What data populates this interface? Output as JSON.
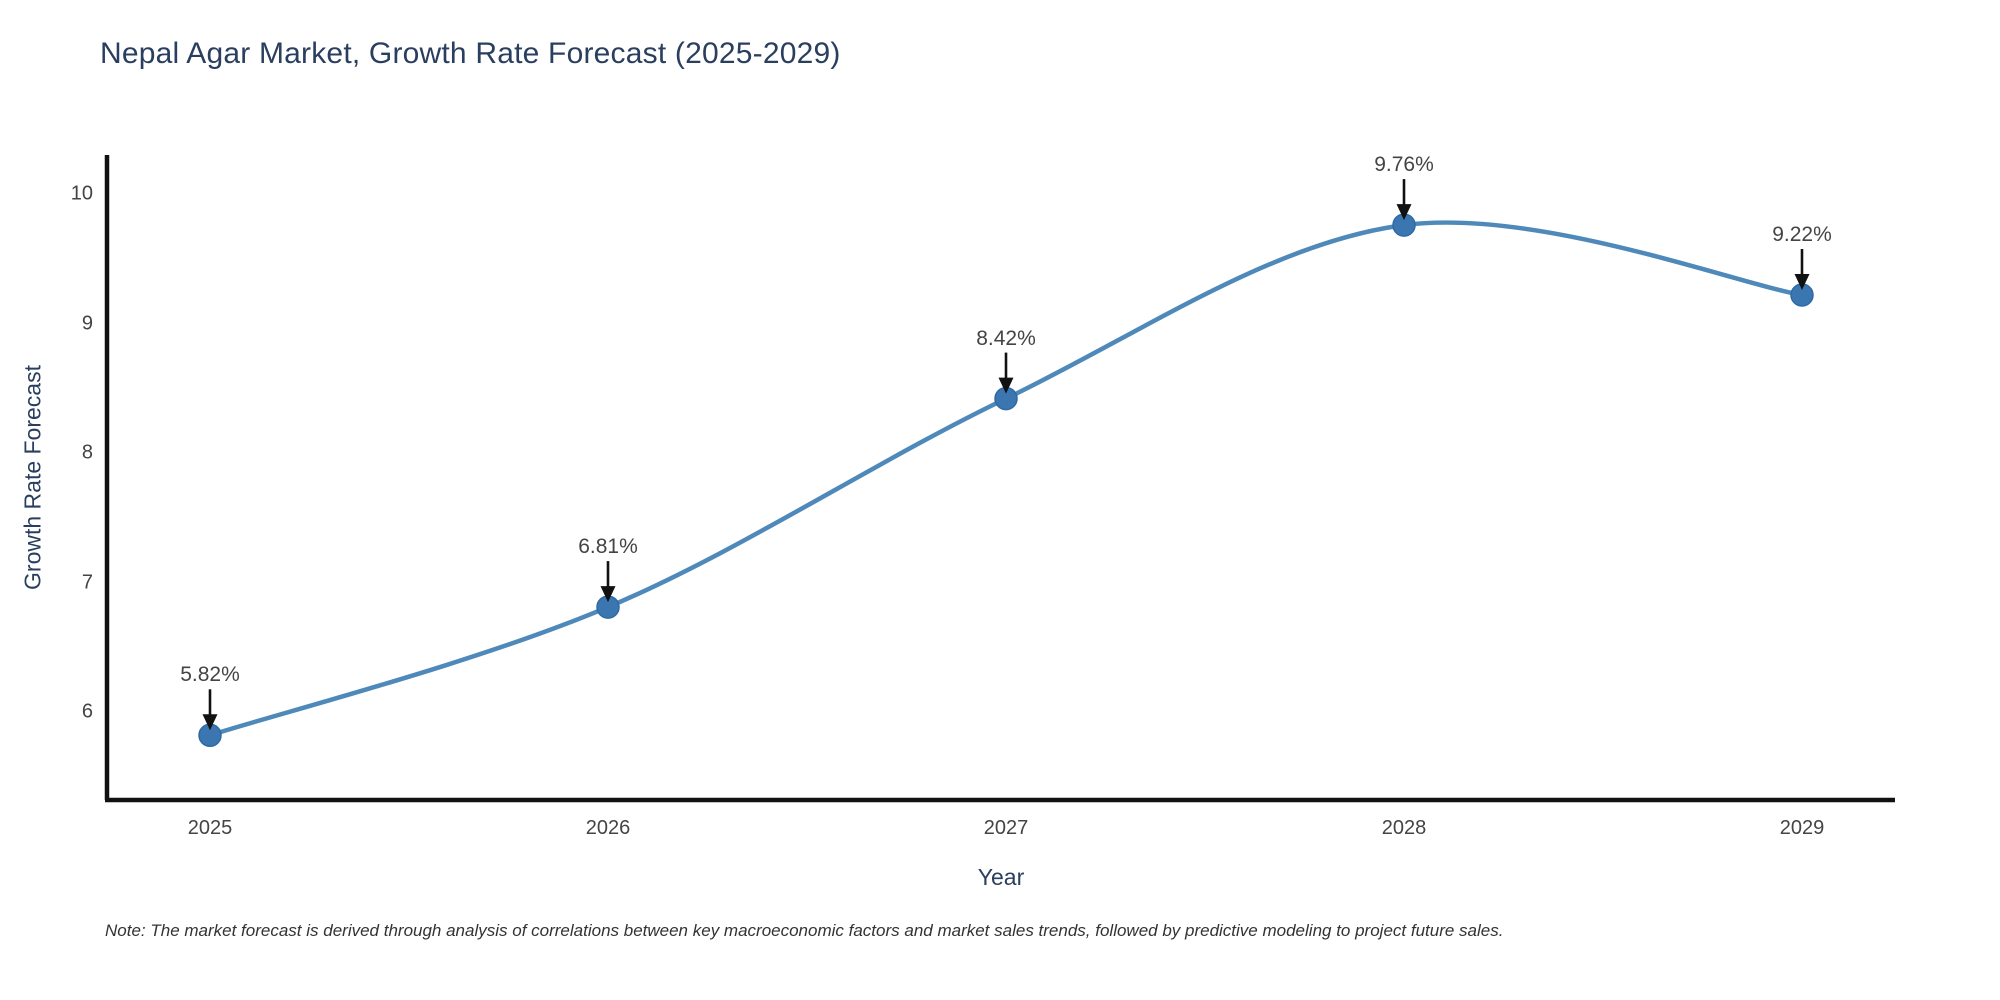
{
  "title": "Nepal Agar Market, Growth Rate Forecast (2025-2029)",
  "note": "Note: The market forecast is derived through analysis of correlations between key macroeconomic factors and market sales trends, followed by predictive modeling to project future sales.",
  "colors": {
    "line": "#4e89ba",
    "marker_fill": "#3c76b0",
    "marker_edge": "#2e6ba6",
    "axis": "#111111",
    "arrow": "#111111",
    "title_text": "#2a3f5f",
    "tick_text": "#444444"
  },
  "chart_data": {
    "type": "line",
    "title": "Nepal Agar Market, Growth Rate Forecast (2025-2029)",
    "xlabel": "Year",
    "ylabel": "Growth Rate Forecast",
    "x": [
      2025,
      2026,
      2027,
      2028,
      2029
    ],
    "xticklabels": [
      "2025",
      "2026",
      "2027",
      "2028",
      "2029"
    ],
    "values": [
      5.82,
      6.81,
      8.42,
      9.76,
      9.22
    ],
    "point_labels": [
      "5.82%",
      "6.81%",
      "8.42%",
      "9.76%",
      "9.22%"
    ],
    "yticks": [
      6,
      7,
      8,
      9,
      10
    ],
    "ylim": [
      5.32,
      10.35
    ],
    "xlim": [
      2024.74,
      2029.23
    ],
    "line_shape": "spline",
    "grid": false,
    "legend": false,
    "annotation_arrows": true,
    "series": [
      {
        "name": "Growth Rate Forecast",
        "values": [
          5.82,
          6.81,
          8.42,
          9.76,
          9.22
        ]
      }
    ]
  }
}
